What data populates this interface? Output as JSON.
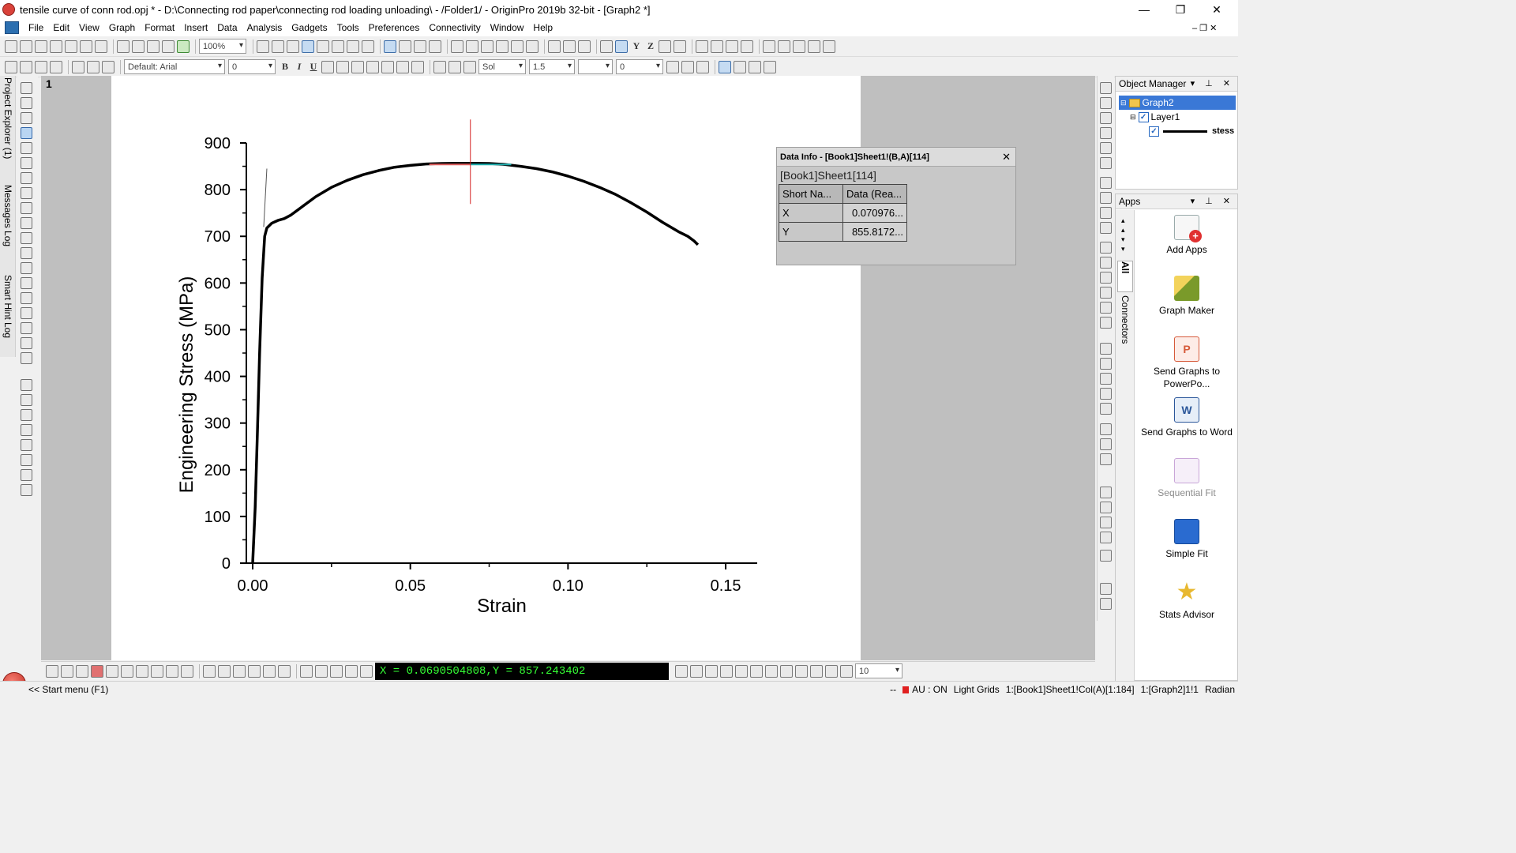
{
  "window": {
    "title": "tensile curve of conn rod.opj * - D:\\Connecting rod paper\\connecting rod loading unloading\\ - /Folder1/ - OriginPro 2019b 32-bit - [Graph2 *]",
    "minimize": "—",
    "restore": "❐",
    "close": "✕"
  },
  "menu": {
    "items": [
      "File",
      "Edit",
      "View",
      "Graph",
      "Format",
      "Insert",
      "Data",
      "Analysis",
      "Gadgets",
      "Tools",
      "Preferences",
      "Connectivity",
      "Window",
      "Help"
    ],
    "mdi_controls": "– ❐ ✕"
  },
  "toolbar": {
    "zoom_value": "100%",
    "font_value": "Default: Arial",
    "font_size_value": "0",
    "line_style_value": "Sol",
    "line_width_value": "1.5",
    "angle_value": "0",
    "bottom_size_value": "10"
  },
  "left_dock": {
    "tabs": [
      "Project Explorer (1)",
      "Messages Log",
      "Smart Hint Log"
    ]
  },
  "graph": {
    "layer_number": "1"
  },
  "chart_data": {
    "type": "line",
    "xlabel": "Strain",
    "ylabel": "Engineering Stress (MPa)",
    "xlim": [
      -0.002,
      0.16
    ],
    "ylim": [
      0,
      900
    ],
    "xticks": [
      0.0,
      0.05,
      0.1,
      0.15
    ],
    "xtick_labels": [
      "0.00",
      "0.05",
      "0.10",
      "0.15"
    ],
    "yticks": [
      0,
      100,
      200,
      300,
      400,
      500,
      600,
      700,
      800,
      900
    ],
    "ytick_labels": [
      "0",
      "100",
      "200",
      "300",
      "400",
      "500",
      "600",
      "700",
      "800",
      "900"
    ],
    "grid": false,
    "series": [
      {
        "name": "stess",
        "color": "#000000",
        "x": [
          0.0,
          0.0008,
          0.0015,
          0.0022,
          0.003,
          0.0038,
          0.0045,
          0.006,
          0.008,
          0.01,
          0.012,
          0.015,
          0.02,
          0.025,
          0.03,
          0.035,
          0.04,
          0.045,
          0.05,
          0.055,
          0.06,
          0.065,
          0.07,
          0.075,
          0.08,
          0.085,
          0.09,
          0.095,
          0.1,
          0.105,
          0.11,
          0.115,
          0.12,
          0.125,
          0.13,
          0.135,
          0.138,
          0.14,
          0.1412
        ],
        "y": [
          0,
          120,
          280,
          450,
          610,
          700,
          718,
          728,
          734,
          738,
          745,
          760,
          785,
          805,
          820,
          832,
          841,
          848,
          852,
          855,
          856,
          856.5,
          856.5,
          856,
          854,
          850,
          845,
          838,
          829,
          818,
          805,
          790,
          772,
          752,
          730,
          710,
          700,
          690,
          682
        ]
      }
    ],
    "fit_line": {
      "color": "#555555",
      "x": [
        0.0035,
        0.0045
      ],
      "y": [
        720,
        845
      ]
    },
    "cursor": {
      "x": 0.0690504808,
      "y": 857.243402,
      "color": "#d42020",
      "range_x": [
        0.056,
        0.082
      ],
      "range_colors": [
        "#e06060",
        "#20b0b0"
      ]
    }
  },
  "data_info": {
    "header": "Data Info - [Book1]Sheet1!(B,A)[114]",
    "close": "✕",
    "subtitle": "[Book1]Sheet1[114]",
    "col_headers": [
      "Short Na...",
      "Data (Rea..."
    ],
    "rows": [
      {
        "name": "X",
        "value": "0.070976..."
      },
      {
        "name": "Y",
        "value": "855.8172..."
      }
    ]
  },
  "object_manager": {
    "title": "Object Manager",
    "controls": "▾ ⊥ ✕",
    "graph": "Graph2",
    "layer": "Layer1",
    "plot": "stess"
  },
  "apps": {
    "title": "Apps",
    "controls": "▾ ⊥ ✕",
    "side_tabs": [
      "All",
      "Connectors"
    ],
    "items": [
      {
        "label": "Add Apps",
        "color": "#e03030"
      },
      {
        "label": "Graph Maker",
        "color": "#7a9a2a"
      },
      {
        "label": "Send Graphs to PowerPo...",
        "color": "#d65a3a"
      },
      {
        "label": "Send Graphs to Word",
        "color": "#2b579a"
      },
      {
        "label": "Sequential Fit",
        "color": "#c9a6d8"
      },
      {
        "label": "Simple Fit",
        "color": "#2a6bd0"
      },
      {
        "label": "Stats Advisor",
        "color": "#e8b830"
      }
    ]
  },
  "coord_readout": "X = 0.0690504808,Y = 857.243402",
  "status": {
    "start": "<< Start menu (F1)",
    "dashes": "--",
    "au": "AU : ON",
    "grids": "Light Grids",
    "col": "1:[Book1]Sheet1!Col(A)[1:184]",
    "graph": "1:[Graph2]1!1",
    "angle": "Radian"
  }
}
